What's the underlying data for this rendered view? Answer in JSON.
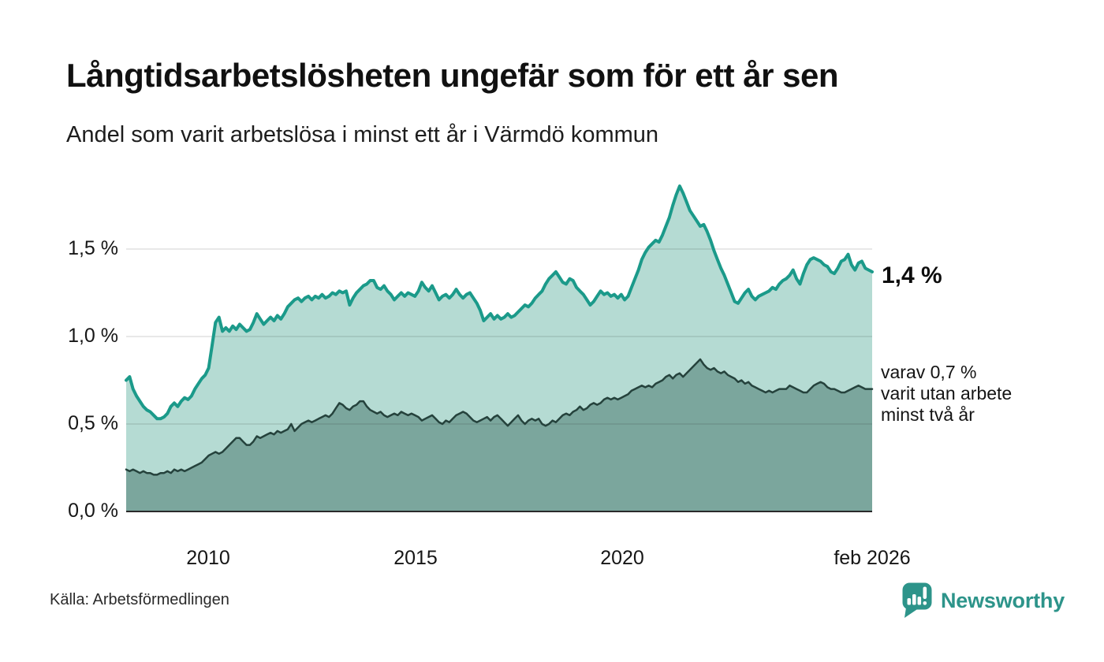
{
  "header": {
    "title": "Långtidsarbetslösheten ungefär som för ett år sen",
    "subtitle": "Andel som varit arbetslösa i minst ett år i Värmdö kommun"
  },
  "chart_data": {
    "type": "area",
    "title": "Långtidsarbetslösheten ungefär som för ett år sen",
    "subtitle": "Andel som varit arbetslösa i minst ett år i Värmdö kommun",
    "unit": "%",
    "x_start": 2008.0,
    "x_end": 2026.083,
    "x_frequency": "monthly",
    "ylim": [
      0,
      1.95
    ],
    "grid": true,
    "y_ticks": [
      {
        "label": "0,0 %",
        "value": 0.0
      },
      {
        "label": "0,5 %",
        "value": 0.5
      },
      {
        "label": "1,0 %",
        "value": 1.0
      },
      {
        "label": "1,5 %",
        "value": 1.5
      }
    ],
    "x_ticks": [
      {
        "label": "2010",
        "t": 2010
      },
      {
        "label": "2015",
        "t": 2015
      },
      {
        "label": "2020",
        "t": 2020
      },
      {
        "label": "feb 2026",
        "t": 2026.083
      }
    ],
    "annotations": [
      {
        "text": "1,4 %",
        "series": 0
      },
      {
        "text": "varav 0,7 %\nvarit utan arbete\nminst två år",
        "series": 1
      }
    ],
    "series": [
      {
        "name": "Andel som varit arbetslösa i minst ett år",
        "end_label": "1,4 %",
        "line_color": "#1b9a8a",
        "fill_color": "#b5dbd3",
        "line_width": 4,
        "values": [
          0.75,
          0.77,
          0.7,
          0.66,
          0.63,
          0.6,
          0.58,
          0.57,
          0.55,
          0.53,
          0.53,
          0.54,
          0.56,
          0.6,
          0.62,
          0.6,
          0.63,
          0.65,
          0.64,
          0.66,
          0.7,
          0.73,
          0.76,
          0.78,
          0.82,
          0.95,
          1.08,
          1.11,
          1.03,
          1.05,
          1.03,
          1.06,
          1.04,
          1.07,
          1.05,
          1.03,
          1.04,
          1.08,
          1.13,
          1.1,
          1.07,
          1.09,
          1.11,
          1.09,
          1.12,
          1.1,
          1.13,
          1.17,
          1.19,
          1.21,
          1.22,
          1.2,
          1.22,
          1.23,
          1.21,
          1.23,
          1.22,
          1.24,
          1.22,
          1.23,
          1.25,
          1.24,
          1.26,
          1.25,
          1.26,
          1.18,
          1.22,
          1.25,
          1.27,
          1.29,
          1.3,
          1.32,
          1.32,
          1.28,
          1.27,
          1.29,
          1.26,
          1.24,
          1.21,
          1.23,
          1.25,
          1.23,
          1.25,
          1.24,
          1.23,
          1.26,
          1.31,
          1.28,
          1.26,
          1.29,
          1.25,
          1.21,
          1.23,
          1.24,
          1.22,
          1.24,
          1.27,
          1.24,
          1.22,
          1.24,
          1.25,
          1.22,
          1.19,
          1.15,
          1.09,
          1.11,
          1.13,
          1.1,
          1.12,
          1.1,
          1.11,
          1.13,
          1.11,
          1.12,
          1.14,
          1.16,
          1.18,
          1.17,
          1.19,
          1.22,
          1.24,
          1.26,
          1.3,
          1.33,
          1.35,
          1.37,
          1.34,
          1.31,
          1.3,
          1.33,
          1.32,
          1.28,
          1.26,
          1.24,
          1.21,
          1.18,
          1.2,
          1.23,
          1.26,
          1.24,
          1.25,
          1.23,
          1.24,
          1.22,
          1.24,
          1.21,
          1.23,
          1.28,
          1.33,
          1.38,
          1.44,
          1.48,
          1.51,
          1.53,
          1.55,
          1.54,
          1.58,
          1.63,
          1.68,
          1.75,
          1.81,
          1.86,
          1.82,
          1.77,
          1.72,
          1.69,
          1.66,
          1.63,
          1.64,
          1.6,
          1.55,
          1.49,
          1.44,
          1.39,
          1.35,
          1.3,
          1.25,
          1.2,
          1.19,
          1.22,
          1.25,
          1.27,
          1.23,
          1.21,
          1.23,
          1.24,
          1.25,
          1.26,
          1.28,
          1.27,
          1.3,
          1.32,
          1.33,
          1.35,
          1.38,
          1.33,
          1.3,
          1.36,
          1.41,
          1.44,
          1.45,
          1.44,
          1.43,
          1.41,
          1.4,
          1.37,
          1.36,
          1.39,
          1.43,
          1.44,
          1.47,
          1.41,
          1.38,
          1.42,
          1.43,
          1.39,
          1.38,
          1.37
        ]
      },
      {
        "name": "varav varit utan arbete minst två år",
        "end_label": "varav 0,7 %",
        "line_color": "#25423c",
        "fill_color": "#7ba69d",
        "line_width": 2.5,
        "values": [
          0.24,
          0.23,
          0.24,
          0.23,
          0.22,
          0.23,
          0.22,
          0.22,
          0.21,
          0.21,
          0.22,
          0.22,
          0.23,
          0.22,
          0.24,
          0.23,
          0.24,
          0.23,
          0.24,
          0.25,
          0.26,
          0.27,
          0.28,
          0.3,
          0.32,
          0.33,
          0.34,
          0.33,
          0.34,
          0.36,
          0.38,
          0.4,
          0.42,
          0.42,
          0.4,
          0.38,
          0.38,
          0.4,
          0.43,
          0.42,
          0.43,
          0.44,
          0.45,
          0.44,
          0.46,
          0.45,
          0.46,
          0.47,
          0.5,
          0.46,
          0.48,
          0.5,
          0.51,
          0.52,
          0.51,
          0.52,
          0.53,
          0.54,
          0.55,
          0.54,
          0.56,
          0.59,
          0.62,
          0.61,
          0.59,
          0.58,
          0.6,
          0.61,
          0.63,
          0.63,
          0.6,
          0.58,
          0.57,
          0.56,
          0.57,
          0.55,
          0.54,
          0.55,
          0.56,
          0.55,
          0.57,
          0.56,
          0.55,
          0.56,
          0.55,
          0.54,
          0.52,
          0.53,
          0.54,
          0.55,
          0.53,
          0.51,
          0.5,
          0.52,
          0.51,
          0.53,
          0.55,
          0.56,
          0.57,
          0.56,
          0.54,
          0.52,
          0.51,
          0.52,
          0.53,
          0.54,
          0.52,
          0.54,
          0.55,
          0.53,
          0.51,
          0.49,
          0.51,
          0.53,
          0.55,
          0.52,
          0.5,
          0.52,
          0.53,
          0.52,
          0.53,
          0.5,
          0.49,
          0.5,
          0.52,
          0.51,
          0.53,
          0.55,
          0.56,
          0.55,
          0.57,
          0.58,
          0.6,
          0.58,
          0.59,
          0.61,
          0.62,
          0.61,
          0.62,
          0.64,
          0.65,
          0.64,
          0.65,
          0.64,
          0.65,
          0.66,
          0.67,
          0.69,
          0.7,
          0.71,
          0.72,
          0.71,
          0.72,
          0.71,
          0.73,
          0.74,
          0.75,
          0.77,
          0.78,
          0.76,
          0.78,
          0.79,
          0.77,
          0.79,
          0.81,
          0.83,
          0.85,
          0.87,
          0.84,
          0.82,
          0.81,
          0.82,
          0.8,
          0.79,
          0.8,
          0.78,
          0.77,
          0.76,
          0.74,
          0.75,
          0.73,
          0.74,
          0.72,
          0.71,
          0.7,
          0.69,
          0.68,
          0.69,
          0.68,
          0.69,
          0.7,
          0.7,
          0.7,
          0.72,
          0.71,
          0.7,
          0.69,
          0.68,
          0.68,
          0.7,
          0.72,
          0.73,
          0.74,
          0.73,
          0.71,
          0.7,
          0.7,
          0.69,
          0.68,
          0.68,
          0.69,
          0.7,
          0.71,
          0.72,
          0.71,
          0.7,
          0.7,
          0.7
        ]
      }
    ]
  },
  "footer": {
    "source": "Källa: Arbetsförmedlingen",
    "brand": "Newsworthy"
  },
  "colors": {
    "accent_teal": "#1b9a8a",
    "light_fill": "#b5dbd3",
    "dark_line": "#25423c",
    "dark_fill": "#7ba69d",
    "brand_teal": "#2d948a",
    "grid": "#dddddd",
    "baseline": "#2a2a2a",
    "background": "#ffffff"
  }
}
